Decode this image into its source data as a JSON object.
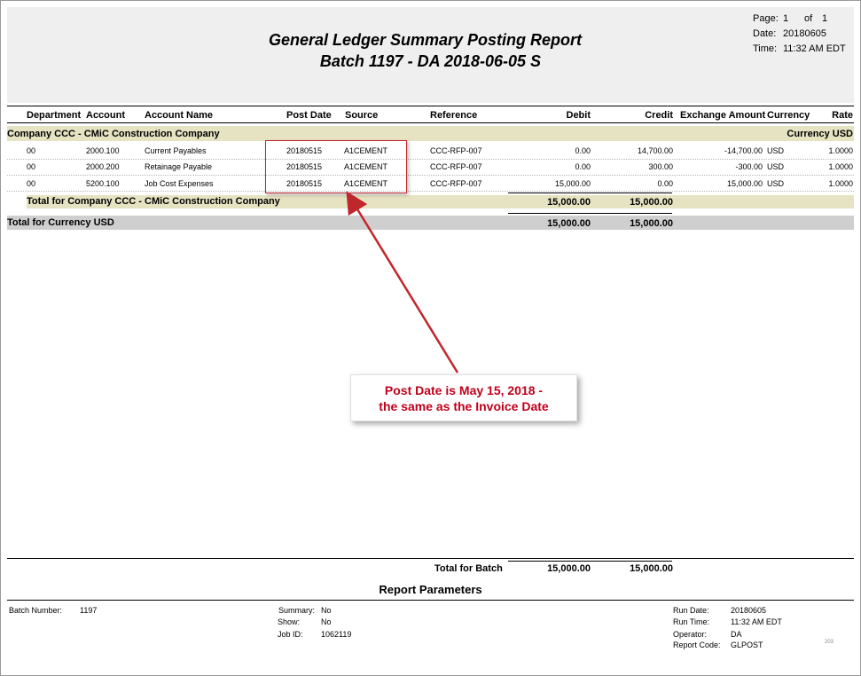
{
  "report": {
    "title": "General Ledger Summary Posting Report",
    "subtitle": "Batch 1197 - DA 2018-06-05 S"
  },
  "page_info": {
    "page_label": "Page:",
    "page_num": "1",
    "of_label": "of",
    "page_total": "1",
    "date_label": "Date:",
    "date_value": "20180605",
    "time_label": "Time:",
    "time_value": "11:32 AM EDT"
  },
  "columns": {
    "department": "Department",
    "account": "Account",
    "account_name": "Account Name",
    "post_date": "Post Date",
    "source": "Source",
    "reference": "Reference",
    "debit": "Debit",
    "credit": "Credit",
    "exchange_amount": "Exchange Amount",
    "currency": "Currency",
    "rate": "Rate"
  },
  "company_group": {
    "label": "Company CCC - CMiC Construction Company",
    "currency_label": "Currency USD"
  },
  "rows": [
    {
      "department": "00",
      "account": "2000.100",
      "account_name": "Current Payables",
      "post_date": "20180515",
      "source": "A1CEMENT",
      "reference": "CCC-RFP-007",
      "debit": "0.00",
      "credit": "14,700.00",
      "exchange_amount": "-14,700.00",
      "currency": "USD",
      "rate": "1.0000"
    },
    {
      "department": "00",
      "account": "2000.200",
      "account_name": "Retainage Payable",
      "post_date": "20180515",
      "source": "A1CEMENT",
      "reference": "CCC-RFP-007",
      "debit": "0.00",
      "credit": "300.00",
      "exchange_amount": "-300.00",
      "currency": "USD",
      "rate": "1.0000"
    },
    {
      "department": "00",
      "account": "5200.100",
      "account_name": "Job Cost Expenses",
      "post_date": "20180515",
      "source": "A1CEMENT",
      "reference": "CCC-RFP-007",
      "debit": "15,000.00",
      "credit": "0.00",
      "exchange_amount": "15,000.00",
      "currency": "USD",
      "rate": "1.0000"
    }
  ],
  "company_total": {
    "label": "Total for Company CCC - CMiC Construction Company",
    "debit": "15,000.00",
    "credit": "15,000.00"
  },
  "currency_total": {
    "label": "Total for Currency USD",
    "debit": "15,000.00",
    "credit": "15,000.00"
  },
  "annotation": {
    "line1": "Post Date is May 15, 2018 -",
    "line2": "the same as the Invoice Date"
  },
  "batch_total": {
    "label": "Total for Batch",
    "debit": "15,000.00",
    "credit": "15,000.00"
  },
  "parameters": {
    "heading": "Report Parameters",
    "batch_number_label": "Batch Number:",
    "batch_number_value": "1197",
    "summary_label": "Summary:",
    "summary_value": "No",
    "show_label": "Show:",
    "show_value": "No",
    "job_id_label": "Job ID:",
    "job_id_value": "1062119",
    "run_date_label": "Run Date:",
    "run_date_value": "20180605",
    "run_time_label": "Run Time:",
    "run_time_value": "11:32 AM EDT",
    "operator_label": "Operator:",
    "operator_value": "DA",
    "report_code_label": "Report Code:",
    "report_code_value": "GLPOST",
    "footer_number": "203"
  },
  "colors": {
    "band_company": "#e6e3c2",
    "band_currency": "#cfcfcf",
    "annotation_red": "#c0001a"
  }
}
